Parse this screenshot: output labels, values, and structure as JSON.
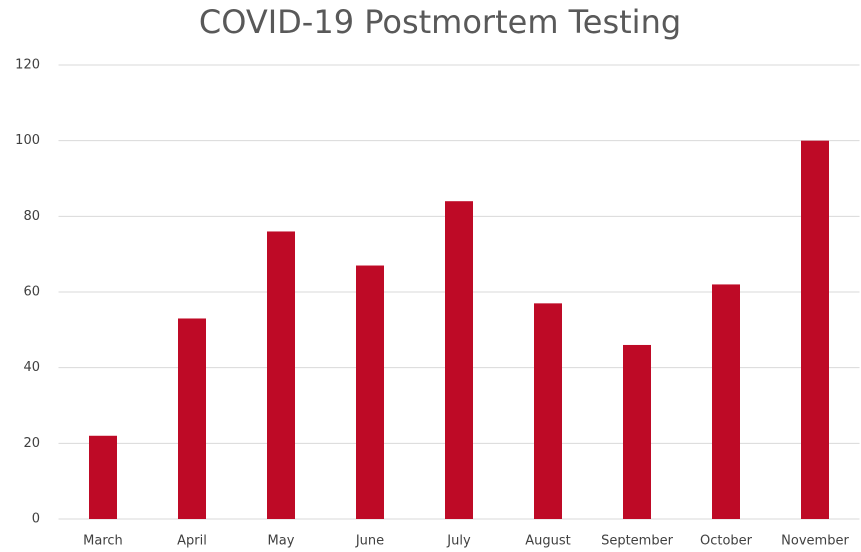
{
  "chart_data": {
    "type": "bar",
    "title": "COVID-19 Postmortem Testing",
    "categories": [
      "March",
      "April",
      "May",
      "June",
      "July",
      "August",
      "September",
      "October",
      "November"
    ],
    "values": [
      22,
      53,
      76,
      67,
      84,
      57,
      46,
      62,
      100
    ],
    "color": "#be0a26",
    "ylim": [
      0,
      120
    ],
    "yticks": [
      0,
      20,
      40,
      60,
      80,
      100,
      120
    ],
    "grid": true
  }
}
